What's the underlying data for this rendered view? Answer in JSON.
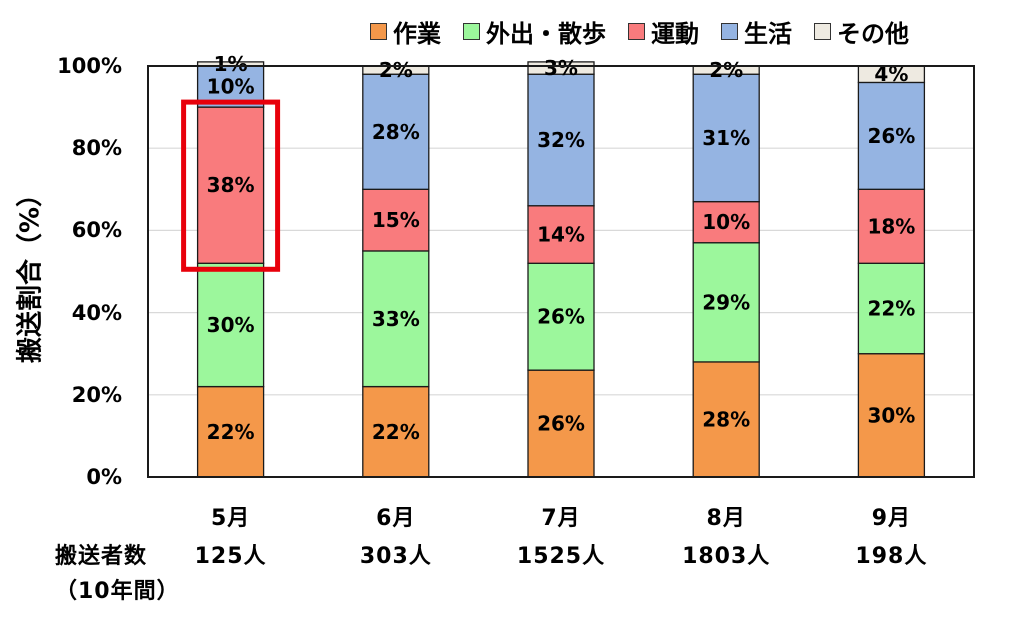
{
  "chart_data": {
    "type": "bar",
    "stacked": true,
    "categories": [
      "5月",
      "6月",
      "7月",
      "8月",
      "9月"
    ],
    "counts": [
      "125人",
      "303人",
      "1525人",
      "1803人",
      "198人"
    ],
    "row_label_1": "搬送者数",
    "row_label_2": "（10年間）",
    "ylabel": "搬送割合（%）",
    "ylim": [
      0,
      100
    ],
    "yticks": [
      "0%",
      "20%",
      "40%",
      "60%",
      "80%",
      "100%"
    ],
    "grid": true,
    "legend_position": "top",
    "series": [
      {
        "name": "作業",
        "color": "#F4984A",
        "values": [
          22,
          22,
          26,
          28,
          30
        ],
        "labels": [
          "22%",
          "22%",
          "26%",
          "28%",
          "30%"
        ]
      },
      {
        "name": "外出・散歩",
        "color": "#9CF79C",
        "values": [
          30,
          33,
          26,
          29,
          22
        ],
        "labels": [
          "30%",
          "33%",
          "26%",
          "29%",
          "22%"
        ]
      },
      {
        "name": "運動",
        "color": "#F97B7D",
        "values": [
          38,
          15,
          14,
          10,
          18
        ],
        "labels": [
          "38%",
          "15%",
          "14%",
          "10%",
          "18%"
        ]
      },
      {
        "name": "生活",
        "color": "#95B4E2",
        "values": [
          10,
          28,
          32,
          31,
          26
        ],
        "labels": [
          "10%",
          "28%",
          "32%",
          "31%",
          "26%"
        ]
      },
      {
        "name": "その他",
        "color": "#EEEAE1",
        "values": [
          1,
          2,
          3,
          2,
          4
        ],
        "labels": [
          "1%",
          "2%",
          "3%",
          "2%",
          "4%"
        ]
      }
    ],
    "highlight": {
      "category_index": 0,
      "series_index": 2,
      "color": "#E8000B"
    }
  }
}
